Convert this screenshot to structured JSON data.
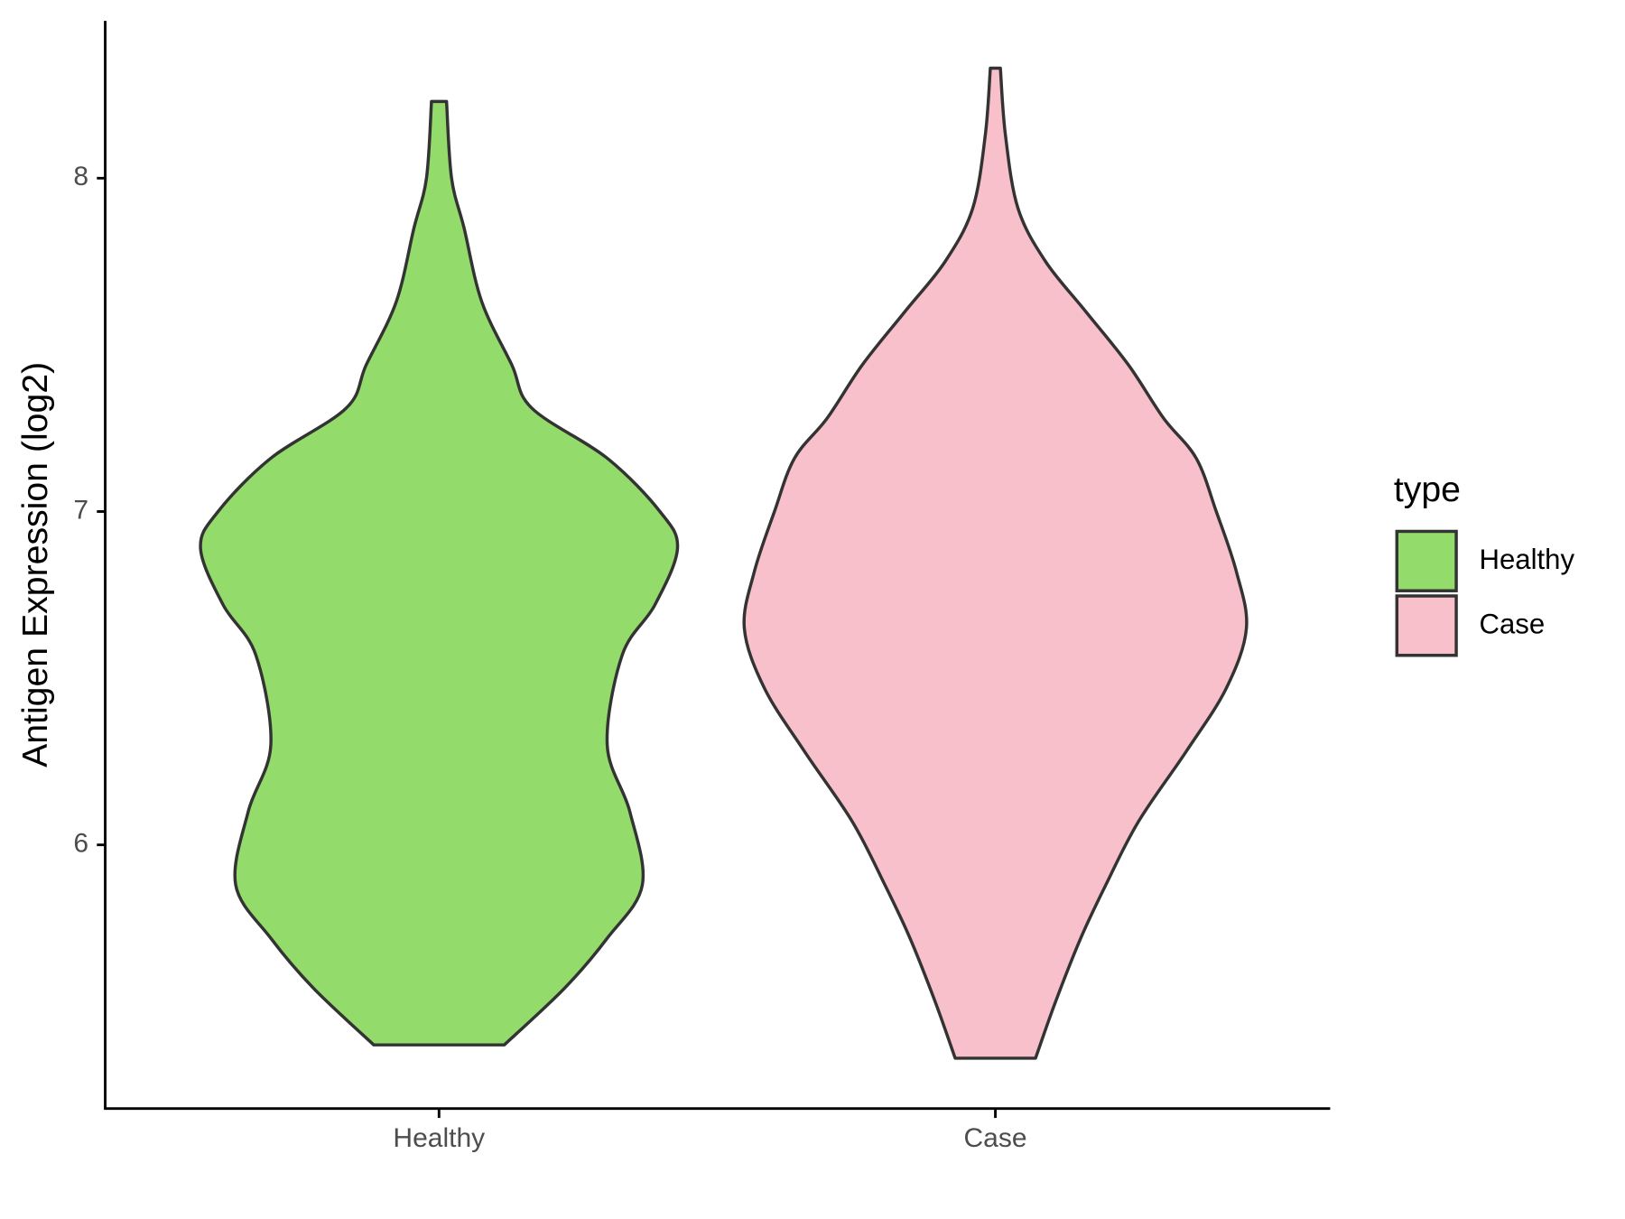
{
  "chart_data": {
    "type": "violin",
    "y_label": "Antigen Expression (log2)",
    "categories": [
      "Healthy",
      "Case"
    ],
    "legend_title": "type",
    "legend": "right",
    "outline_color": "#333333",
    "series": [
      {
        "name": "Healthy",
        "color": "#93dc6b",
        "y": [
          8.23,
          8.0,
          7.85,
          7.63,
          7.44,
          7.31,
          7.16,
          7.0,
          6.89,
          6.72,
          6.57,
          6.3,
          6.1,
          5.88,
          5.72,
          5.57,
          5.4
        ],
        "width": [
          0.03,
          0.05,
          0.1,
          0.17,
          0.29,
          0.37,
          0.67,
          0.88,
          0.95,
          0.86,
          0.73,
          0.67,
          0.76,
          0.81,
          0.67,
          0.5,
          0.26
        ]
      },
      {
        "name": "Case",
        "color": "#f8c0cb",
        "y": [
          8.33,
          8.13,
          7.91,
          7.75,
          7.6,
          7.44,
          7.28,
          7.16,
          7.0,
          6.82,
          6.65,
          6.47,
          6.28,
          6.07,
          5.88,
          5.72,
          5.53,
          5.36
        ],
        "width": [
          0.02,
          0.04,
          0.09,
          0.2,
          0.36,
          0.53,
          0.67,
          0.8,
          0.88,
          0.96,
          1.0,
          0.92,
          0.76,
          0.57,
          0.44,
          0.34,
          0.24,
          0.16
        ]
      }
    ],
    "ylim": [
      5.209,
      8.472
    ],
    "yticks": [
      6,
      7,
      8
    ]
  }
}
